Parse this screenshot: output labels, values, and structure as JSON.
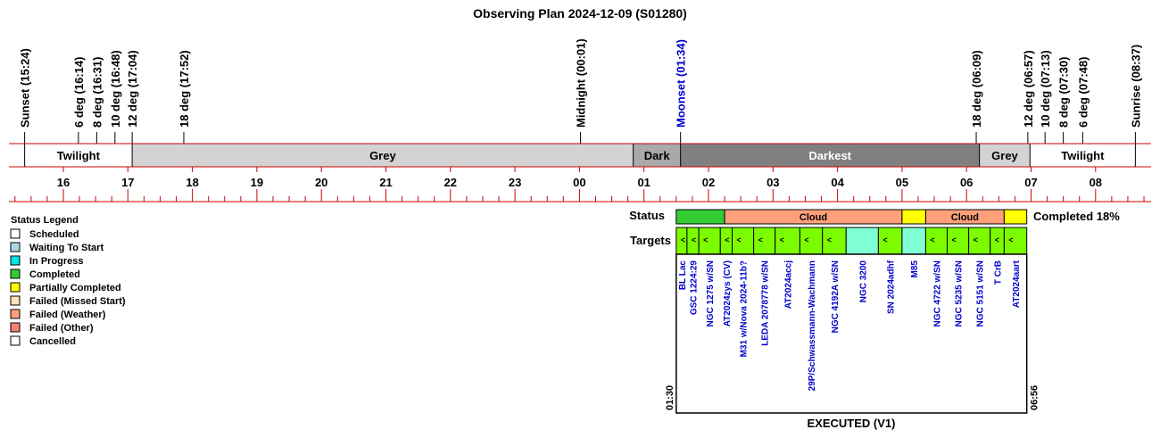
{
  "title": "Observing Plan 2024-12-09 (S01280)",
  "time_markers": [
    {
      "label": "Sunset (15:24)",
      "time": "15:24",
      "color": "#000000"
    },
    {
      "label": "6 deg (16:14)",
      "time": "16:14",
      "color": "#000000"
    },
    {
      "label": "8 deg (16:31)",
      "time": "16:31",
      "color": "#000000"
    },
    {
      "label": "10 deg (16:48)",
      "time": "16:48",
      "color": "#000000"
    },
    {
      "label": "12 deg (17:04)",
      "time": "17:04",
      "color": "#000000"
    },
    {
      "label": "18 deg (17:52)",
      "time": "17:52",
      "color": "#000000"
    },
    {
      "label": "Midnight (00:01)",
      "time": "00:01",
      "color": "#000000"
    },
    {
      "label": "Moonset (01:34)",
      "time": "01:34",
      "color": "#0000cc"
    },
    {
      "label": "18 deg (06:09)",
      "time": "06:09",
      "color": "#000000"
    },
    {
      "label": "12 deg (06:57)",
      "time": "06:57",
      "color": "#000000"
    },
    {
      "label": "10 deg (07:13)",
      "time": "07:13",
      "color": "#000000"
    },
    {
      "label": "8 deg (07:30)",
      "time": "07:30",
      "color": "#000000"
    },
    {
      "label": "6 deg (07:48)",
      "time": "07:48",
      "color": "#000000"
    },
    {
      "label": "Sunrise (08:37)",
      "time": "08:37",
      "color": "#000000"
    }
  ],
  "sky_bands": [
    {
      "label": "Twilight",
      "start": "15:24",
      "end": "17:04",
      "color": "#ffffff",
      "text_color": "#000000"
    },
    {
      "label": "Grey",
      "start": "17:04",
      "end": "00:50",
      "color": "#d3d3d3",
      "text_color": "#000000"
    },
    {
      "label": "Dark",
      "start": "00:50",
      "end": "01:34",
      "color": "#a9a9a9",
      "text_color": "#000000"
    },
    {
      "label": "Darkest",
      "start": "01:34",
      "end": "06:12",
      "color": "#808080",
      "text_color": "#ffffff"
    },
    {
      "label": "Grey",
      "start": "06:12",
      "end": "06:59",
      "color": "#d3d3d3",
      "text_color": "#000000"
    },
    {
      "label": "Twilight",
      "start": "06:59",
      "end": "08:37",
      "color": "#ffffff",
      "text_color": "#000000"
    }
  ],
  "hour_labels": [
    "16",
    "17",
    "18",
    "19",
    "20",
    "21",
    "22",
    "23",
    "00",
    "01",
    "02",
    "03",
    "04",
    "05",
    "06",
    "07",
    "08"
  ],
  "legend": {
    "title": "Status Legend",
    "items": [
      {
        "label": "Scheduled",
        "color": "#ffffff"
      },
      {
        "label": "Waiting To Start",
        "color": "#add8e6"
      },
      {
        "label": "In Progress",
        "color": "#00e5e5"
      },
      {
        "label": "Completed",
        "color": "#33cc33"
      },
      {
        "label": "Partially Completed",
        "color": "#ffff00"
      },
      {
        "label": "Failed (Missed Start)",
        "color": "#ffe4b5"
      },
      {
        "label": "Failed (Weather)",
        "color": "#ffa07a"
      },
      {
        "label": "Failed (Other)",
        "color": "#fa8072"
      },
      {
        "label": "Cancelled",
        "color": "#ffffff"
      }
    ]
  },
  "status_row": {
    "label": "Status",
    "segments": [
      {
        "start": "01:30",
        "end": "02:15",
        "color": "#33cc33",
        "label": ""
      },
      {
        "start": "02:15",
        "end": "05:00",
        "color": "#ffa07a",
        "label": "Cloud"
      },
      {
        "start": "05:00",
        "end": "05:22",
        "color": "#ffff00",
        "label": ""
      },
      {
        "start": "05:22",
        "end": "06:35",
        "color": "#ffa07a",
        "label": "Cloud"
      },
      {
        "start": "06:35",
        "end": "06:56",
        "color": "#ffff00",
        "label": ""
      }
    ]
  },
  "completed_text": "Completed 18%",
  "targets_row_label": "Targets",
  "targets": [
    {
      "name": "BL Lac",
      "start": "01:30",
      "end": "01:40",
      "color": "#7cfc00",
      "mark": "<"
    },
    {
      "name": "GSC 1224:29",
      "start": "01:40",
      "end": "01:51",
      "color": "#7cfc00",
      "mark": "<"
    },
    {
      "name": "NGC 1275 w/SN",
      "start": "01:51",
      "end": "02:11",
      "color": "#7cfc00",
      "mark": "<"
    },
    {
      "name": "AT2024zys (CV)",
      "start": "02:11",
      "end": "02:22",
      "color": "#7cfc00",
      "mark": "<"
    },
    {
      "name": "M31 w/Nova 2024-11b?",
      "start": "02:22",
      "end": "02:42",
      "color": "#7cfc00",
      "mark": "<"
    },
    {
      "name": "LEDA 2078778 w/SN",
      "start": "02:42",
      "end": "03:02",
      "color": "#7cfc00",
      "mark": "<"
    },
    {
      "name": "AT2024accj",
      "start": "03:02",
      "end": "03:25",
      "color": "#7cfc00",
      "mark": "<"
    },
    {
      "name": "29P/Schwassmann-Wachmann",
      "start": "03:25",
      "end": "03:46",
      "color": "#7cfc00",
      "mark": "<"
    },
    {
      "name": "NGC 4192A w/SN",
      "start": "03:46",
      "end": "04:08",
      "color": "#7cfc00",
      "mark": "<"
    },
    {
      "name": "NGC 3200",
      "start": "04:08",
      "end": "04:38",
      "color": "#7fffd4",
      "mark": ""
    },
    {
      "name": "SN 2024adhf",
      "start": "04:38",
      "end": "05:00",
      "color": "#7cfc00",
      "mark": "<"
    },
    {
      "name": "M85",
      "start": "05:00",
      "end": "05:22",
      "color": "#7fffd4",
      "mark": ""
    },
    {
      "name": "NGC 4722 w/SN",
      "start": "05:22",
      "end": "05:42",
      "color": "#7cfc00",
      "mark": "<"
    },
    {
      "name": "NGC 5235 w/SN",
      "start": "05:42",
      "end": "06:02",
      "color": "#7cfc00",
      "mark": "<"
    },
    {
      "name": "NGC 5151 w/SN",
      "start": "06:02",
      "end": "06:22",
      "color": "#7cfc00",
      "mark": "<"
    },
    {
      "name": "T CrB",
      "start": "06:22",
      "end": "06:35",
      "color": "#7cfc00",
      "mark": "<"
    },
    {
      "name": "AT2024aart",
      "start": "06:35",
      "end": "06:56",
      "color": "#7cfc00",
      "mark": "<"
    }
  ],
  "executed_window": {
    "start_label": "01:30",
    "end_label": "06:56",
    "start": "01:30",
    "end": "06:56"
  },
  "executed_label": "EXECUTED (V1)"
}
